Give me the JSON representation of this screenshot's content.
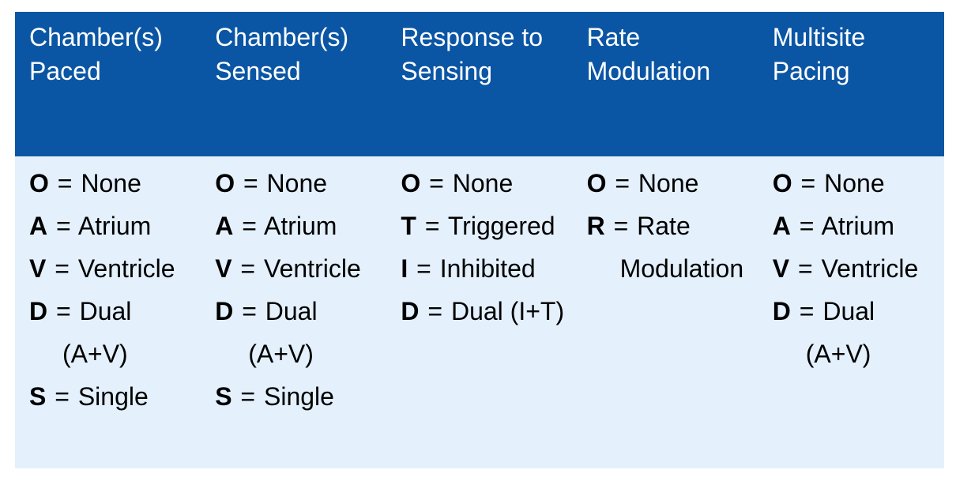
{
  "table": {
    "header_bg": "#0b56a4",
    "header_text_color": "#ffffff",
    "body_bg": "#e4f0fc",
    "body_text_color": "#000000",
    "equals": "=",
    "columns": [
      {
        "id": "chambers-paced",
        "header_lines": [
          "Chamber(s)",
          "Paced"
        ],
        "lines": [
          {
            "code": "O",
            "text": "None"
          },
          {
            "code": "A",
            "text": "Atrium"
          },
          {
            "code": "V",
            "text": "Ventricle"
          },
          {
            "code": "D",
            "text": "Dual"
          },
          {
            "continuation": "(A+V)"
          },
          {
            "code": "S",
            "text": "Single"
          }
        ]
      },
      {
        "id": "chambers-sensed",
        "header_lines": [
          "Chamber(s)",
          "Sensed"
        ],
        "lines": [
          {
            "code": "O",
            "text": "None"
          },
          {
            "code": "A",
            "text": "Atrium"
          },
          {
            "code": "V",
            "text": "Ventricle"
          },
          {
            "code": "D",
            "text": "Dual"
          },
          {
            "continuation": "(A+V)"
          },
          {
            "code": "S",
            "text": "Single"
          }
        ]
      },
      {
        "id": "response-to-sensing",
        "header_lines": [
          "Response to",
          "Sensing"
        ],
        "lines": [
          {
            "code": "O",
            "text": "None"
          },
          {
            "code": "T",
            "text": "Triggered"
          },
          {
            "code": "I",
            "text": "Inhibited"
          },
          {
            "code": "D",
            "text": "Dual (I+T)"
          }
        ]
      },
      {
        "id": "rate-modulation",
        "header_lines": [
          "Rate",
          "Modulation"
        ],
        "lines": [
          {
            "code": "O",
            "text": "None"
          },
          {
            "code": "R",
            "text": "Rate"
          },
          {
            "continuation": "Modulation"
          }
        ]
      },
      {
        "id": "multisite-pacing",
        "header_lines": [
          "Multisite",
          "Pacing"
        ],
        "lines": [
          {
            "code": "O",
            "text": "None"
          },
          {
            "code": "A",
            "text": "Atrium"
          },
          {
            "code": "V",
            "text": "Ventricle"
          },
          {
            "code": "D",
            "text": "Dual"
          },
          {
            "continuation": "(A+V)"
          }
        ]
      }
    ]
  }
}
